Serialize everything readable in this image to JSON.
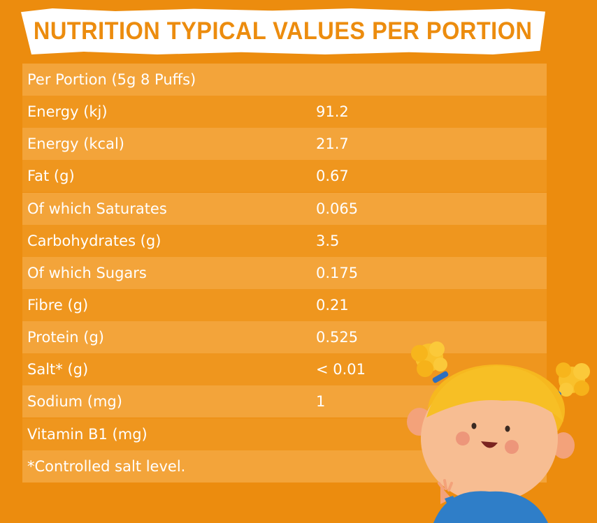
{
  "title": "NUTRITION TYPICAL VALUES PER PORTION",
  "rows": [
    {
      "label": "Per Portion (5g 8 Puffs)",
      "value": ""
    },
    {
      "label": "Energy (kj)",
      "value": "91.2"
    },
    {
      "label": "Energy (kcal)",
      "value": "21.7"
    },
    {
      "label": "Fat (g)",
      "value": "0.67"
    },
    {
      "label": "Of which Saturates",
      "value": "0.065"
    },
    {
      "label": "Carbohydrates (g)",
      "value": "3.5"
    },
    {
      "label": "Of which Sugars",
      "value": "0.175"
    },
    {
      "label": "Fibre (g)",
      "value": "0.21"
    },
    {
      "label": "Protein (g)",
      "value": "0.525"
    },
    {
      "label": "Salt* (g)",
      "value": "< 0.01"
    },
    {
      "label": "Sodium (mg)",
      "value": "1"
    },
    {
      "label": "Vitamin B1 (mg)",
      "value": ""
    },
    {
      "label": "*Controlled salt level.",
      "value": ""
    }
  ],
  "colors": {
    "background": "#ec8c0e",
    "row_light": "#f3a43a",
    "row_dark": "#ef961e",
    "title_text": "#ec8c0e",
    "banner": "#ffffff"
  },
  "illustration": {
    "name": "cartoon-girl-illustration"
  }
}
